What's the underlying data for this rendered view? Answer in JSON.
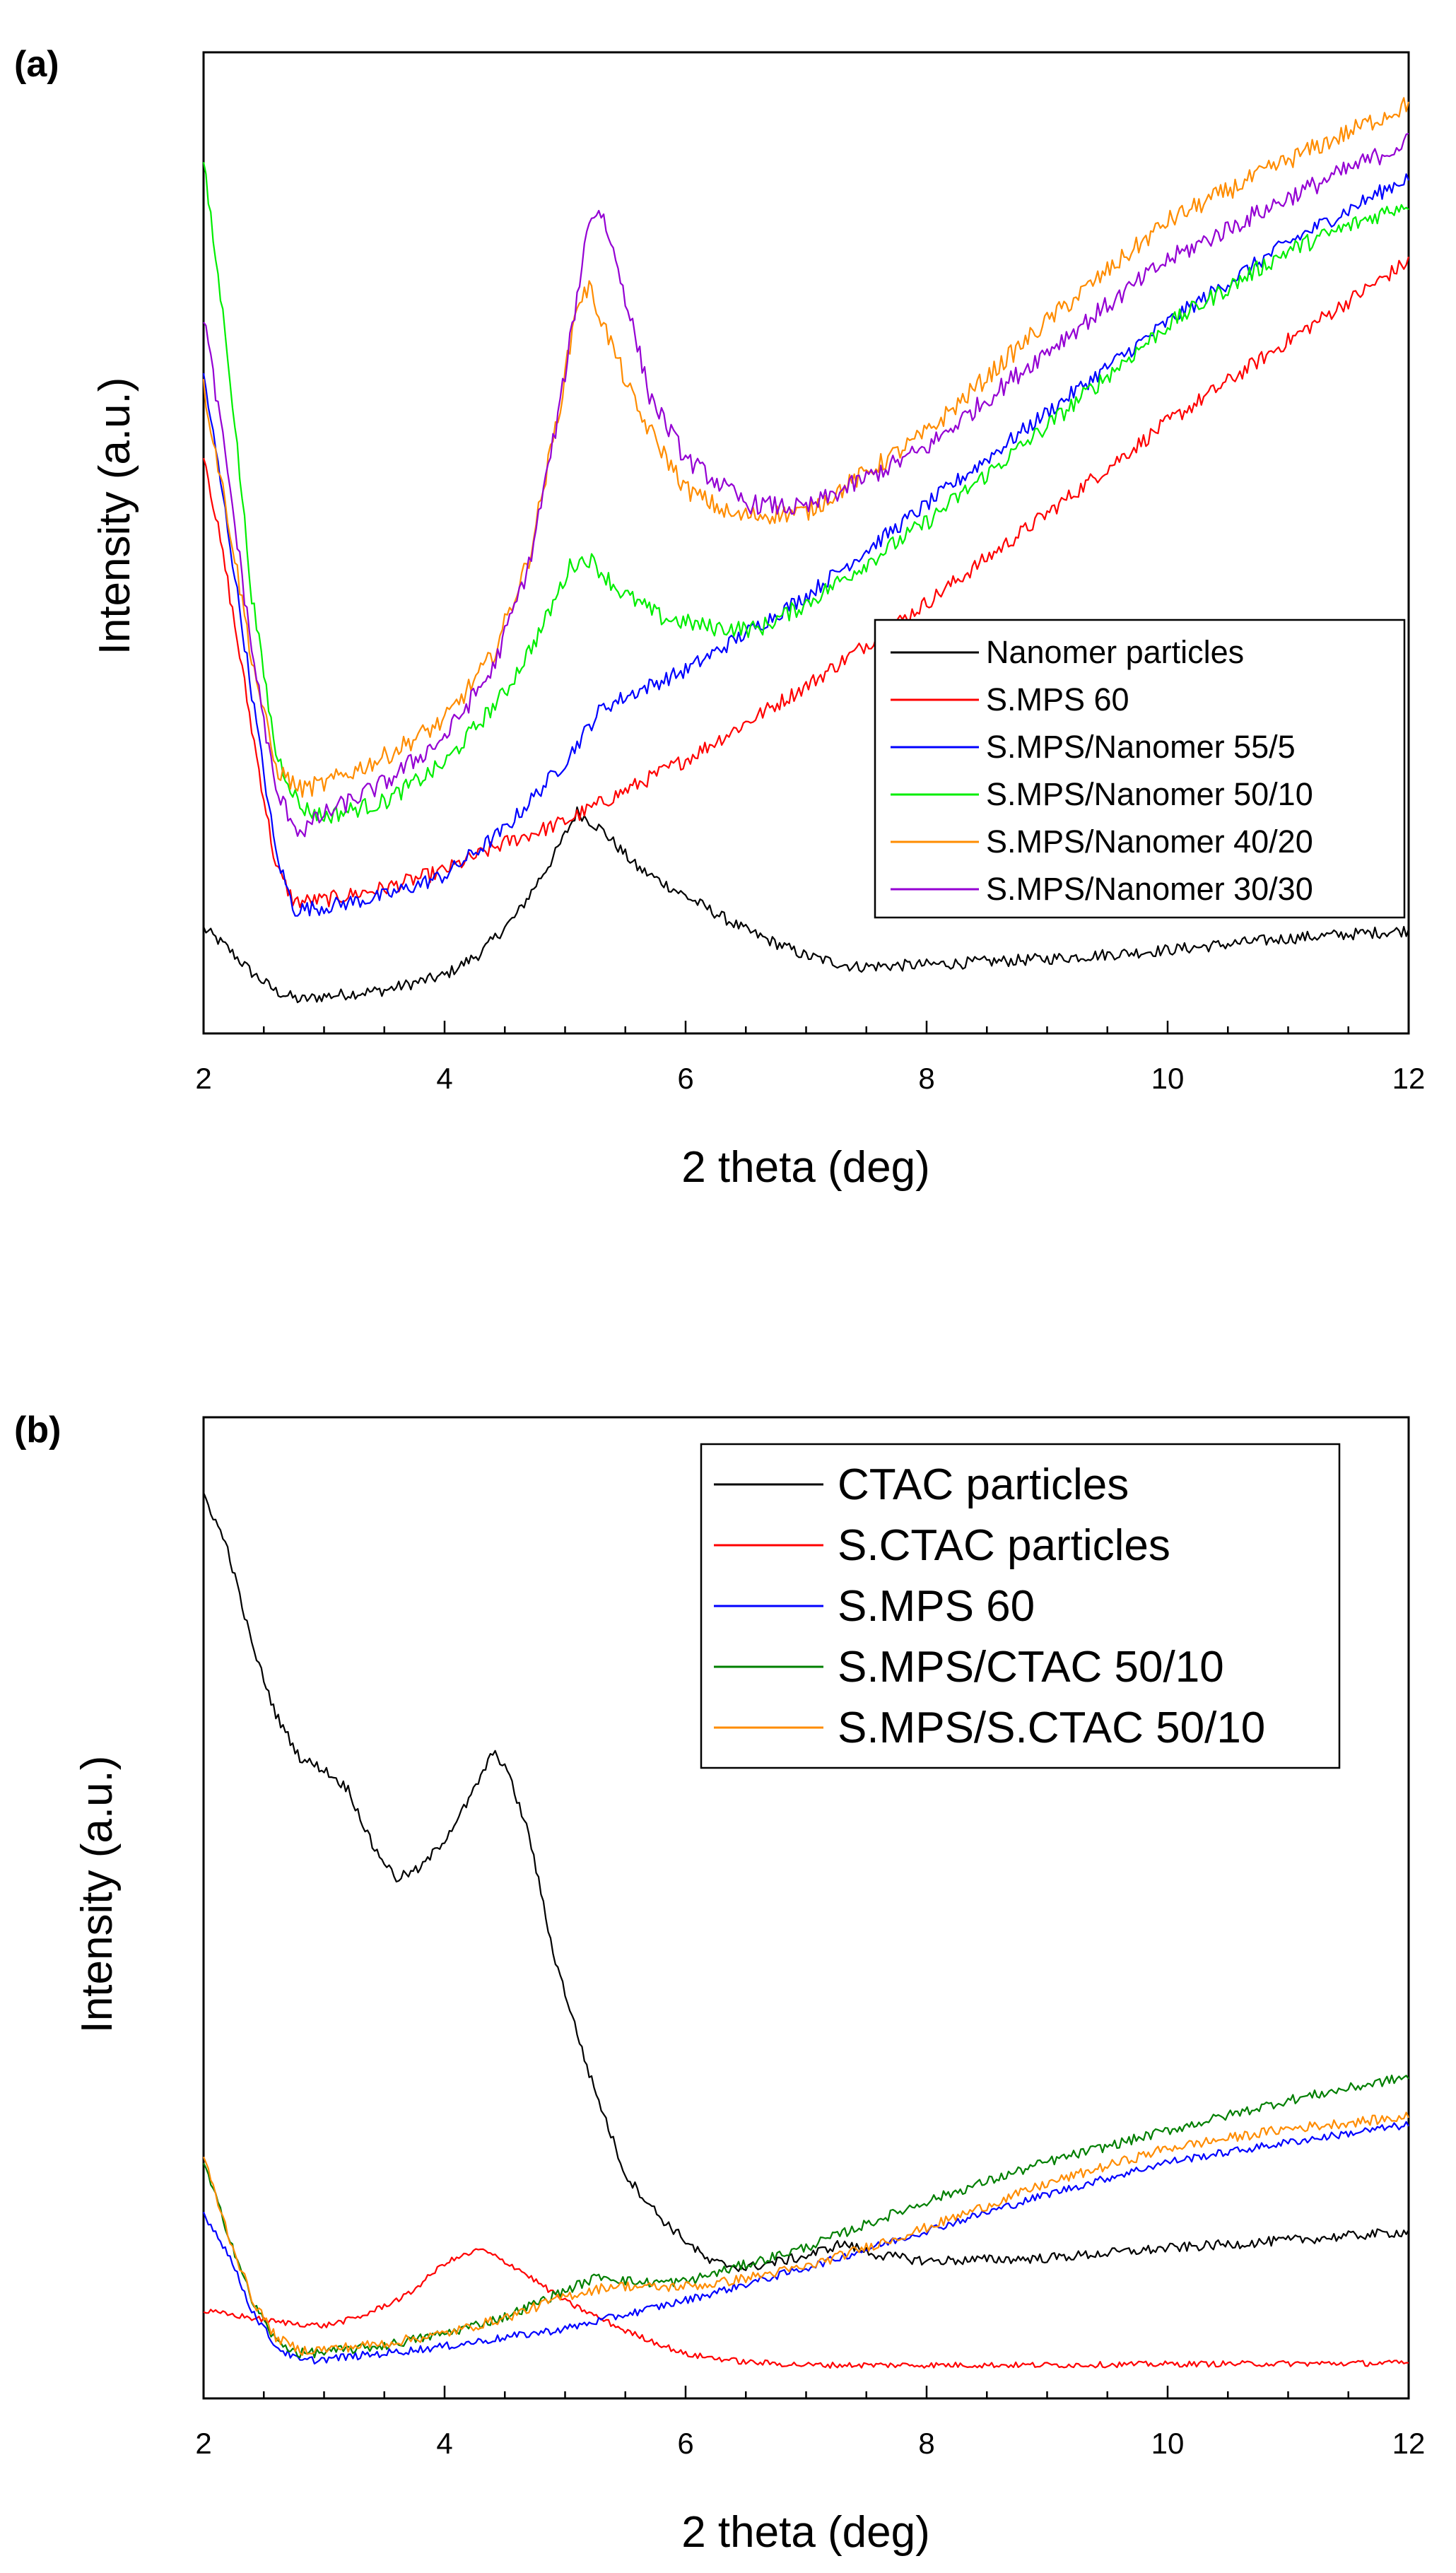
{
  "chart_data": [
    {
      "type": "line",
      "panel_label": "(a)",
      "xlabel": "2 theta (deg)",
      "ylabel": "Intensity (a.u.)",
      "xlim": [
        2,
        12
      ],
      "ylim": [
        0,
        100
      ],
      "xticks": [
        2,
        4,
        6,
        8,
        10,
        12
      ],
      "legend_position": "bottom-right",
      "series": [
        {
          "name": "Nanomer particles",
          "color": "#000000",
          "noise": 0.6,
          "points": [
            [
              2.0,
              10.7
            ],
            [
              2.2,
              8.7
            ],
            [
              2.4,
              6.2
            ],
            [
              2.6,
              4.3
            ],
            [
              2.8,
              3.4
            ],
            [
              3.0,
              3.8
            ],
            [
              3.5,
              4.4
            ],
            [
              4.0,
              5.9
            ],
            [
              4.3,
              8.2
            ],
            [
              4.6,
              12.1
            ],
            [
              4.9,
              17.9
            ],
            [
              5.1,
              22.6
            ],
            [
              5.3,
              20.8
            ],
            [
              5.6,
              16.9
            ],
            [
              6.0,
              14.0
            ],
            [
              6.5,
              10.5
            ],
            [
              7.0,
              7.9
            ],
            [
              7.4,
              6.8
            ],
            [
              8.0,
              7.0
            ],
            [
              9.0,
              7.6
            ],
            [
              10.0,
              8.5
            ],
            [
              11.0,
              9.7
            ],
            [
              12.0,
              10.5
            ]
          ]
        },
        {
          "name": "S.MPS 60",
          "color": "#ff0000",
          "noise": 0.8,
          "points": [
            [
              2.0,
              59.4
            ],
            [
              2.2,
              46.0
            ],
            [
              2.4,
              31.1
            ],
            [
              2.6,
              17.0
            ],
            [
              2.75,
              13.4
            ],
            [
              3.0,
              13.6
            ],
            [
              3.5,
              14.8
            ],
            [
              4.0,
              16.6
            ],
            [
              4.5,
              19.4
            ],
            [
              5.0,
              21.6
            ],
            [
              6.0,
              27.9
            ],
            [
              7.0,
              35.4
            ],
            [
              8.0,
              43.9
            ],
            [
              9.0,
              53.0
            ],
            [
              10.0,
              62.3
            ],
            [
              11.0,
              70.6
            ],
            [
              12.0,
              78.7
            ]
          ]
        },
        {
          "name": "S.MPS/Nanomer 55/5",
          "color": "#0000ff",
          "noise": 0.8,
          "points": [
            [
              2.0,
              67.2
            ],
            [
              2.2,
              51.6
            ],
            [
              2.4,
              34.7
            ],
            [
              2.6,
              18.4
            ],
            [
              2.75,
              12.6
            ],
            [
              3.0,
              12.9
            ],
            [
              3.5,
              14.0
            ],
            [
              4.0,
              16.1
            ],
            [
              4.5,
              20.8
            ],
            [
              5.0,
              27.7
            ],
            [
              5.3,
              33.1
            ],
            [
              5.6,
              34.9
            ],
            [
              6.0,
              37.0
            ],
            [
              7.0,
              44.6
            ],
            [
              8.0,
              53.9
            ],
            [
              9.0,
              63.3
            ],
            [
              10.0,
              72.5
            ],
            [
              11.0,
              80.6
            ],
            [
              12.0,
              87.3
            ]
          ]
        },
        {
          "name": "S.MPS/Nanomer 50/10",
          "color": "#00ee00",
          "noise": 0.9,
          "points": [
            [
              2.0,
              88.7
            ],
            [
              2.2,
              69.4
            ],
            [
              2.4,
              44.7
            ],
            [
              2.6,
              28.6
            ],
            [
              2.8,
              23.1
            ],
            [
              3.0,
              22.1
            ],
            [
              3.5,
              23.6
            ],
            [
              4.0,
              27.5
            ],
            [
              4.5,
              34.7
            ],
            [
              4.8,
              41.1
            ],
            [
              5.05,
              47.8
            ],
            [
              5.2,
              48.4
            ],
            [
              5.45,
              45.1
            ],
            [
              5.8,
              42.4
            ],
            [
              6.2,
              41.4
            ],
            [
              6.6,
              41.2
            ],
            [
              7.0,
              43.8
            ],
            [
              8.0,
              52.1
            ],
            [
              9.0,
              61.9
            ],
            [
              10.0,
              72.2
            ],
            [
              11.0,
              79.8
            ],
            [
              12.0,
              84.7
            ]
          ]
        },
        {
          "name": "S.MPS/Nanomer 40/20",
          "color": "#ff8c00",
          "noise": 1.0,
          "points": [
            [
              2.0,
              65.9
            ],
            [
              2.2,
              52.8
            ],
            [
              2.4,
              38.3
            ],
            [
              2.6,
              27.0
            ],
            [
              2.8,
              24.9
            ],
            [
              3.0,
              25.4
            ],
            [
              3.5,
              28.2
            ],
            [
              4.0,
              31.9
            ],
            [
              4.4,
              38.5
            ],
            [
              4.7,
              48.4
            ],
            [
              4.95,
              63.5
            ],
            [
              5.1,
              74.5
            ],
            [
              5.2,
              76.0
            ],
            [
              5.35,
              71.3
            ],
            [
              5.6,
              63.5
            ],
            [
              6.0,
              55.5
            ],
            [
              6.4,
              52.7
            ],
            [
              7.0,
              53.1
            ],
            [
              8.0,
              61.2
            ],
            [
              9.0,
              72.6
            ],
            [
              10.0,
              82.8
            ],
            [
              11.0,
              89.0
            ],
            [
              12.0,
              94.7
            ]
          ]
        },
        {
          "name": "S.MPS/Nanomer 30/30",
          "color": "#9400d3",
          "noise": 1.0,
          "points": [
            [
              2.0,
              73.3
            ],
            [
              2.2,
              57.3
            ],
            [
              2.4,
              39.2
            ],
            [
              2.6,
              24.6
            ],
            [
              2.8,
              20.5
            ],
            [
              3.0,
              22.3
            ],
            [
              3.5,
              25.5
            ],
            [
              4.0,
              30.2
            ],
            [
              4.4,
              37.1
            ],
            [
              4.7,
              47.7
            ],
            [
              4.95,
              63.4
            ],
            [
              5.1,
              75.2
            ],
            [
              5.2,
              83.2
            ],
            [
              5.3,
              83.8
            ],
            [
              5.45,
              77.6
            ],
            [
              5.7,
              65.1
            ],
            [
              6.0,
              58.6
            ],
            [
              6.5,
              54.0
            ],
            [
              7.0,
              53.5
            ],
            [
              8.0,
              59.7
            ],
            [
              9.0,
              69.6
            ],
            [
              10.0,
              78.8
            ],
            [
              11.0,
              85.2
            ],
            [
              12.0,
              90.9
            ]
          ]
        }
      ]
    },
    {
      "type": "line",
      "panel_label": "(b)",
      "xlabel": "2 theta (deg)",
      "ylabel": "Intensity (a.u.)",
      "xlim": [
        2,
        12
      ],
      "ylim": [
        0,
        100
      ],
      "xticks": [
        2,
        4,
        6,
        8,
        10,
        12
      ],
      "legend_position": "top-right",
      "series": [
        {
          "name": "CTAC particles",
          "color": "#000000",
          "noise": 0.5,
          "points": [
            [
              2.0,
              92.2
            ],
            [
              2.2,
              86.6
            ],
            [
              2.4,
              76.9
            ],
            [
              2.6,
              69.7
            ],
            [
              2.8,
              65.3
            ],
            [
              3.0,
              64.1
            ],
            [
              3.2,
              62.1
            ],
            [
              3.4,
              56.4
            ],
            [
              3.6,
              53.0
            ],
            [
              3.8,
              54.0
            ],
            [
              4.0,
              57.0
            ],
            [
              4.2,
              60.9
            ],
            [
              4.4,
              65.8
            ],
            [
              4.5,
              64.6
            ],
            [
              4.7,
              57.5
            ],
            [
              4.9,
              45.5
            ],
            [
              5.2,
              33.1
            ],
            [
              5.5,
              22.8
            ],
            [
              5.8,
              18.3
            ],
            [
              6.2,
              13.9
            ],
            [
              6.5,
              13.3
            ],
            [
              7.0,
              14.5
            ],
            [
              7.3,
              15.8
            ],
            [
              7.6,
              14.6
            ],
            [
              8.0,
              14.0
            ],
            [
              9.0,
              14.3
            ],
            [
              10.0,
              15.3
            ],
            [
              11.0,
              16.1
            ],
            [
              12.0,
              17.0
            ]
          ]
        },
        {
          "name": "S.CTAC particles",
          "color": "#ff0000",
          "noise": 0.3,
          "points": [
            [
              2.0,
              8.9
            ],
            [
              2.3,
              8.4
            ],
            [
              2.6,
              7.8
            ],
            [
              3.0,
              7.4
            ],
            [
              3.3,
              8.3
            ],
            [
              3.7,
              10.6
            ],
            [
              4.0,
              13.8
            ],
            [
              4.3,
              15.2
            ],
            [
              4.6,
              13.3
            ],
            [
              5.0,
              9.9
            ],
            [
              5.5,
              6.9
            ],
            [
              6.0,
              4.5
            ],
            [
              6.5,
              3.7
            ],
            [
              7.0,
              3.4
            ],
            [
              8.0,
              3.4
            ],
            [
              9.0,
              3.4
            ],
            [
              10.0,
              3.5
            ],
            [
              12.0,
              3.6
            ]
          ]
        },
        {
          "name": "S.MPS 60",
          "color": "#0000ff",
          "noise": 0.4,
          "points": [
            [
              2.0,
              18.9
            ],
            [
              2.2,
              14.9
            ],
            [
              2.4,
              9.0
            ],
            [
              2.6,
              5.3
            ],
            [
              2.8,
              3.8
            ],
            [
              3.0,
              4.0
            ],
            [
              3.5,
              4.6
            ],
            [
              4.0,
              5.3
            ],
            [
              5.0,
              7.1
            ],
            [
              6.0,
              10.0
            ],
            [
              7.0,
              13.3
            ],
            [
              8.0,
              17.1
            ],
            [
              9.0,
              20.8
            ],
            [
              10.0,
              24.1
            ],
            [
              11.0,
              26.1
            ],
            [
              12.0,
              27.9
            ]
          ]
        },
        {
          "name": "S.MPS/CTAC 50/10",
          "color": "#007f00",
          "noise": 0.5,
          "points": [
            [
              2.0,
              23.9
            ],
            [
              2.2,
              17.0
            ],
            [
              2.4,
              10.0
            ],
            [
              2.6,
              5.8
            ],
            [
              2.8,
              4.6
            ],
            [
              3.0,
              4.7
            ],
            [
              3.5,
              5.4
            ],
            [
              4.0,
              6.6
            ],
            [
              4.5,
              8.3
            ],
            [
              5.0,
              11.0
            ],
            [
              5.3,
              12.5
            ],
            [
              5.6,
              11.8
            ],
            [
              6.0,
              11.9
            ],
            [
              7.0,
              15.4
            ],
            [
              8.0,
              20.1
            ],
            [
              9.0,
              24.1
            ],
            [
              10.0,
              27.3
            ],
            [
              11.0,
              30.4
            ],
            [
              12.0,
              32.8
            ]
          ]
        },
        {
          "name": "S.MPS/S.CTAC 50/10",
          "color": "#ff8c00",
          "noise": 0.5,
          "points": [
            [
              2.0,
              24.6
            ],
            [
              2.2,
              16.9
            ],
            [
              2.4,
              10.2
            ],
            [
              2.6,
              6.2
            ],
            [
              2.8,
              4.9
            ],
            [
              3.0,
              5.0
            ],
            [
              3.5,
              5.6
            ],
            [
              4.0,
              6.6
            ],
            [
              4.5,
              8.2
            ],
            [
              5.0,
              10.4
            ],
            [
              5.4,
              11.5
            ],
            [
              5.8,
              11.3
            ],
            [
              6.2,
              11.6
            ],
            [
              7.0,
              13.4
            ],
            [
              8.0,
              17.4
            ],
            [
              9.0,
              21.9
            ],
            [
              10.0,
              25.5
            ],
            [
              11.0,
              27.5
            ],
            [
              12.0,
              28.7
            ]
          ]
        }
      ]
    }
  ]
}
